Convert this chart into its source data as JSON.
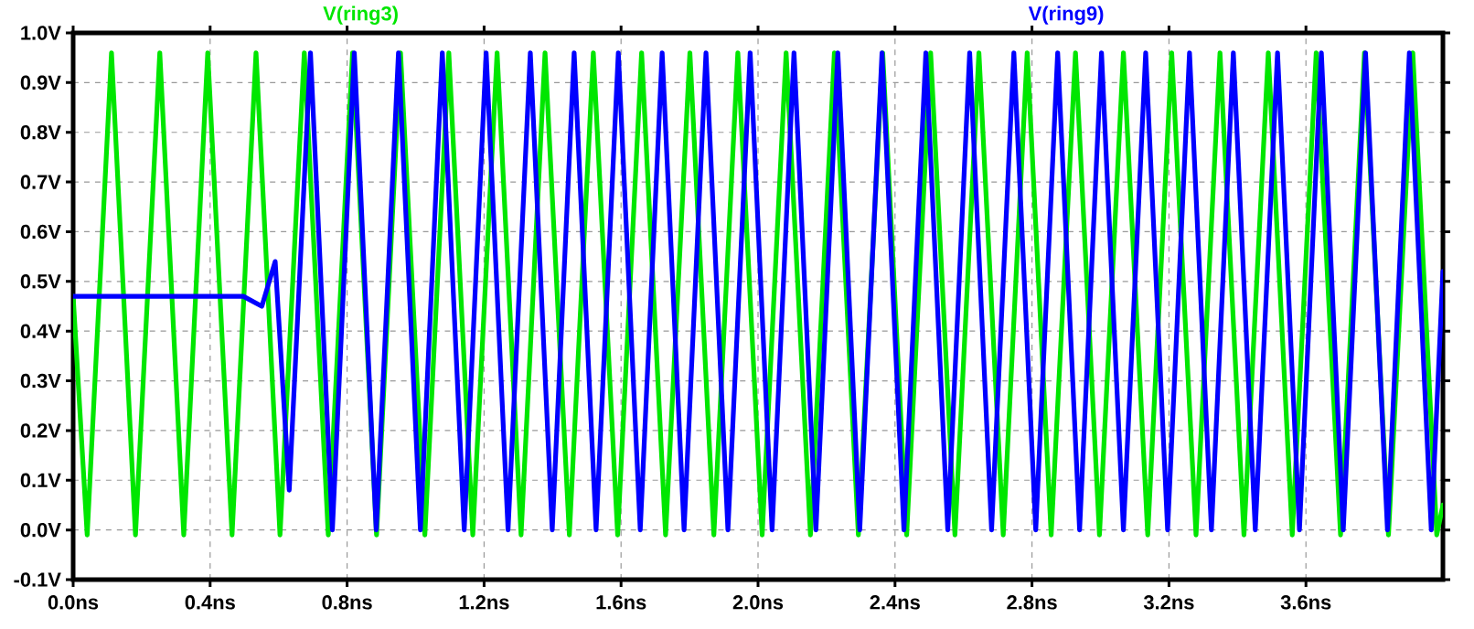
{
  "chart_data": {
    "type": "line",
    "xlim": [
      0,
      4
    ],
    "ylim": [
      -0.1,
      1.0
    ],
    "grid": true,
    "xticks": [
      {
        "value": 0,
        "label": "0.0ns"
      },
      {
        "value": 0.4,
        "label": "0.4ns"
      },
      {
        "value": 0.8,
        "label": "0.8ns"
      },
      {
        "value": 1.2,
        "label": "1.2ns"
      },
      {
        "value": 1.6,
        "label": "1.6ns"
      },
      {
        "value": 2.0,
        "label": "2.0ns"
      },
      {
        "value": 2.4,
        "label": "2.4ns"
      },
      {
        "value": 2.8,
        "label": "2.8ns"
      },
      {
        "value": 3.2,
        "label": "3.2ns"
      },
      {
        "value": 3.6,
        "label": "3.6ns"
      }
    ],
    "yticks": [
      {
        "value": -0.1,
        "label": "-0.1V"
      },
      {
        "value": 0.0,
        "label": "0.0V"
      },
      {
        "value": 0.1,
        "label": "0.1V"
      },
      {
        "value": 0.2,
        "label": "0.2V"
      },
      {
        "value": 0.3,
        "label": "0.3V"
      },
      {
        "value": 0.4,
        "label": "0.4V"
      },
      {
        "value": 0.5,
        "label": "0.5V"
      },
      {
        "value": 0.6,
        "label": "0.6V"
      },
      {
        "value": 0.7,
        "label": "0.7V"
      },
      {
        "value": 0.8,
        "label": "0.8V"
      },
      {
        "value": 0.9,
        "label": "0.9V"
      },
      {
        "value": 1.0,
        "label": "1.0V"
      }
    ],
    "series": [
      {
        "name": "V(ring3)",
        "color": "#00e600",
        "x": [
          0,
          0.041,
          0.112,
          0.182,
          0.253,
          0.323,
          0.393,
          0.464,
          0.534,
          0.604,
          0.675,
          0.745,
          0.816,
          0.886,
          0.956,
          1.027,
          1.097,
          1.167,
          1.238,
          1.308,
          1.378,
          1.449,
          1.519,
          1.59,
          1.66,
          1.73,
          1.801,
          1.871,
          1.941,
          2.012,
          2.082,
          2.153,
          2.223,
          2.293,
          2.364,
          2.434,
          2.504,
          2.575,
          2.645,
          2.716,
          2.786,
          2.856,
          2.927,
          2.997,
          3.067,
          3.138,
          3.208,
          3.279,
          3.349,
          3.419,
          3.49,
          3.56,
          3.63,
          3.701,
          3.771,
          3.841,
          3.912,
          3.982,
          4.0
        ],
        "values": [
          0.47,
          -0.01,
          0.96,
          -0.01,
          0.96,
          -0.01,
          0.96,
          -0.01,
          0.96,
          -0.01,
          0.96,
          -0.01,
          0.96,
          -0.01,
          0.96,
          -0.01,
          0.96,
          -0.01,
          0.96,
          -0.01,
          0.96,
          -0.01,
          0.96,
          -0.01,
          0.96,
          -0.01,
          0.96,
          -0.01,
          0.96,
          -0.01,
          0.96,
          -0.01,
          0.96,
          -0.01,
          0.96,
          -0.01,
          0.96,
          -0.01,
          0.96,
          -0.01,
          0.96,
          -0.01,
          0.96,
          -0.01,
          0.96,
          -0.01,
          0.96,
          -0.01,
          0.96,
          -0.01,
          0.96,
          -0.01,
          0.96,
          -0.01,
          0.96,
          -0.01,
          0.96,
          -0.01,
          0.05
        ]
      },
      {
        "name": "V(ring9)",
        "color": "#0000ff",
        "x": [
          0,
          0.497,
          0.551,
          0.59,
          0.631,
          0.693,
          0.757,
          0.821,
          0.885,
          0.95,
          1.014,
          1.078,
          1.142,
          1.206,
          1.27,
          1.335,
          1.399,
          1.463,
          1.527,
          1.592,
          1.656,
          1.72,
          1.784,
          1.848,
          1.912,
          1.977,
          2.041,
          2.105,
          2.169,
          2.233,
          2.297,
          2.362,
          2.426,
          2.49,
          2.554,
          2.618,
          2.682,
          2.747,
          2.811,
          2.875,
          2.939,
          3.003,
          3.067,
          3.132,
          3.196,
          3.26,
          3.324,
          3.388,
          3.452,
          3.517,
          3.581,
          3.645,
          3.709,
          3.774,
          3.838,
          3.902,
          3.966,
          4.0
        ],
        "values": [
          0.47,
          0.47,
          0.45,
          0.54,
          0.08,
          0.96,
          0.0,
          0.96,
          0.0,
          0.96,
          0.0,
          0.96,
          0.0,
          0.96,
          0.0,
          0.96,
          0.0,
          0.96,
          0.0,
          0.96,
          0.0,
          0.96,
          0.0,
          0.96,
          0.0,
          0.96,
          0.0,
          0.96,
          0.0,
          0.96,
          0.0,
          0.96,
          0.0,
          0.96,
          0.0,
          0.96,
          0.0,
          0.96,
          0.0,
          0.96,
          0.0,
          0.96,
          0.0,
          0.96,
          0.0,
          0.96,
          0.0,
          0.96,
          0.0,
          0.96,
          0.0,
          0.96,
          0.0,
          0.96,
          0.0,
          0.96,
          0.0,
          0.52
        ]
      }
    ]
  }
}
